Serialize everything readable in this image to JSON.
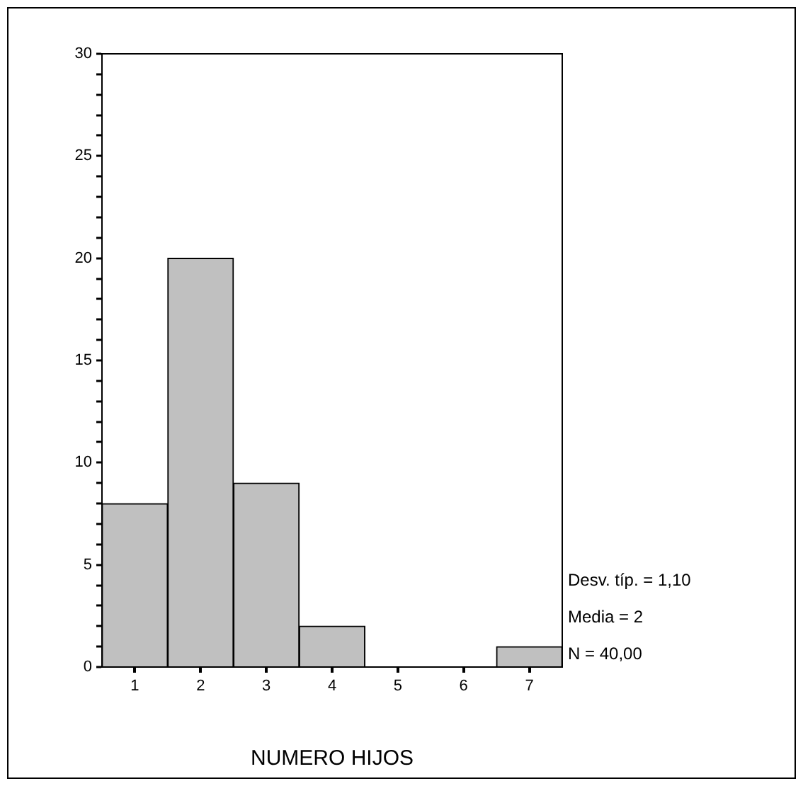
{
  "chart_data": {
    "type": "histogram",
    "xlabel": "NUMERO HIJOS",
    "bins": [
      0.5,
      1.5,
      2.5,
      3.5,
      4.5,
      5.5,
      6.5,
      7.5
    ],
    "values": [
      8,
      20,
      9,
      2,
      0,
      0,
      1
    ],
    "color": "#c0c0c0",
    "xlim": [
      0.5,
      7.5
    ],
    "xticks": [
      1,
      2,
      3,
      4,
      5,
      6,
      7
    ],
    "ylim": [
      0,
      30
    ],
    "yticks": [
      0,
      {
        "value": 1,
        "label": null
      },
      {
        "value": 2,
        "label": null
      },
      {
        "value": 3,
        "label": null
      },
      {
        "value": 4,
        "label": null
      },
      5,
      {
        "value": 6,
        "label": null
      },
      {
        "value": 7,
        "label": null
      },
      {
        "value": 8,
        "label": null
      },
      {
        "value": 9,
        "label": null
      },
      10,
      {
        "value": 11,
        "label": null
      },
      {
        "value": 12,
        "label": null
      },
      {
        "value": 13,
        "label": null
      },
      {
        "value": 14,
        "label": null
      },
      15,
      {
        "value": 16,
        "label": null
      },
      {
        "value": 17,
        "label": null
      },
      {
        "value": 18,
        "label": null
      },
      {
        "value": 19,
        "label": null
      },
      20,
      {
        "value": 21,
        "label": null
      },
      {
        "value": 22,
        "label": null
      },
      {
        "value": 23,
        "label": null
      },
      {
        "value": 24,
        "label": null
      },
      25,
      {
        "value": 26,
        "label": null
      },
      {
        "value": 27,
        "label": null
      },
      {
        "value": 28,
        "label": null
      },
      {
        "value": 29,
        "label": null
      },
      30
    ],
    "annotations": [
      "Desv. típ. = 1,10",
      "Media = 2",
      "N = 40,00"
    ],
    "grid": false,
    "legend": false
  }
}
